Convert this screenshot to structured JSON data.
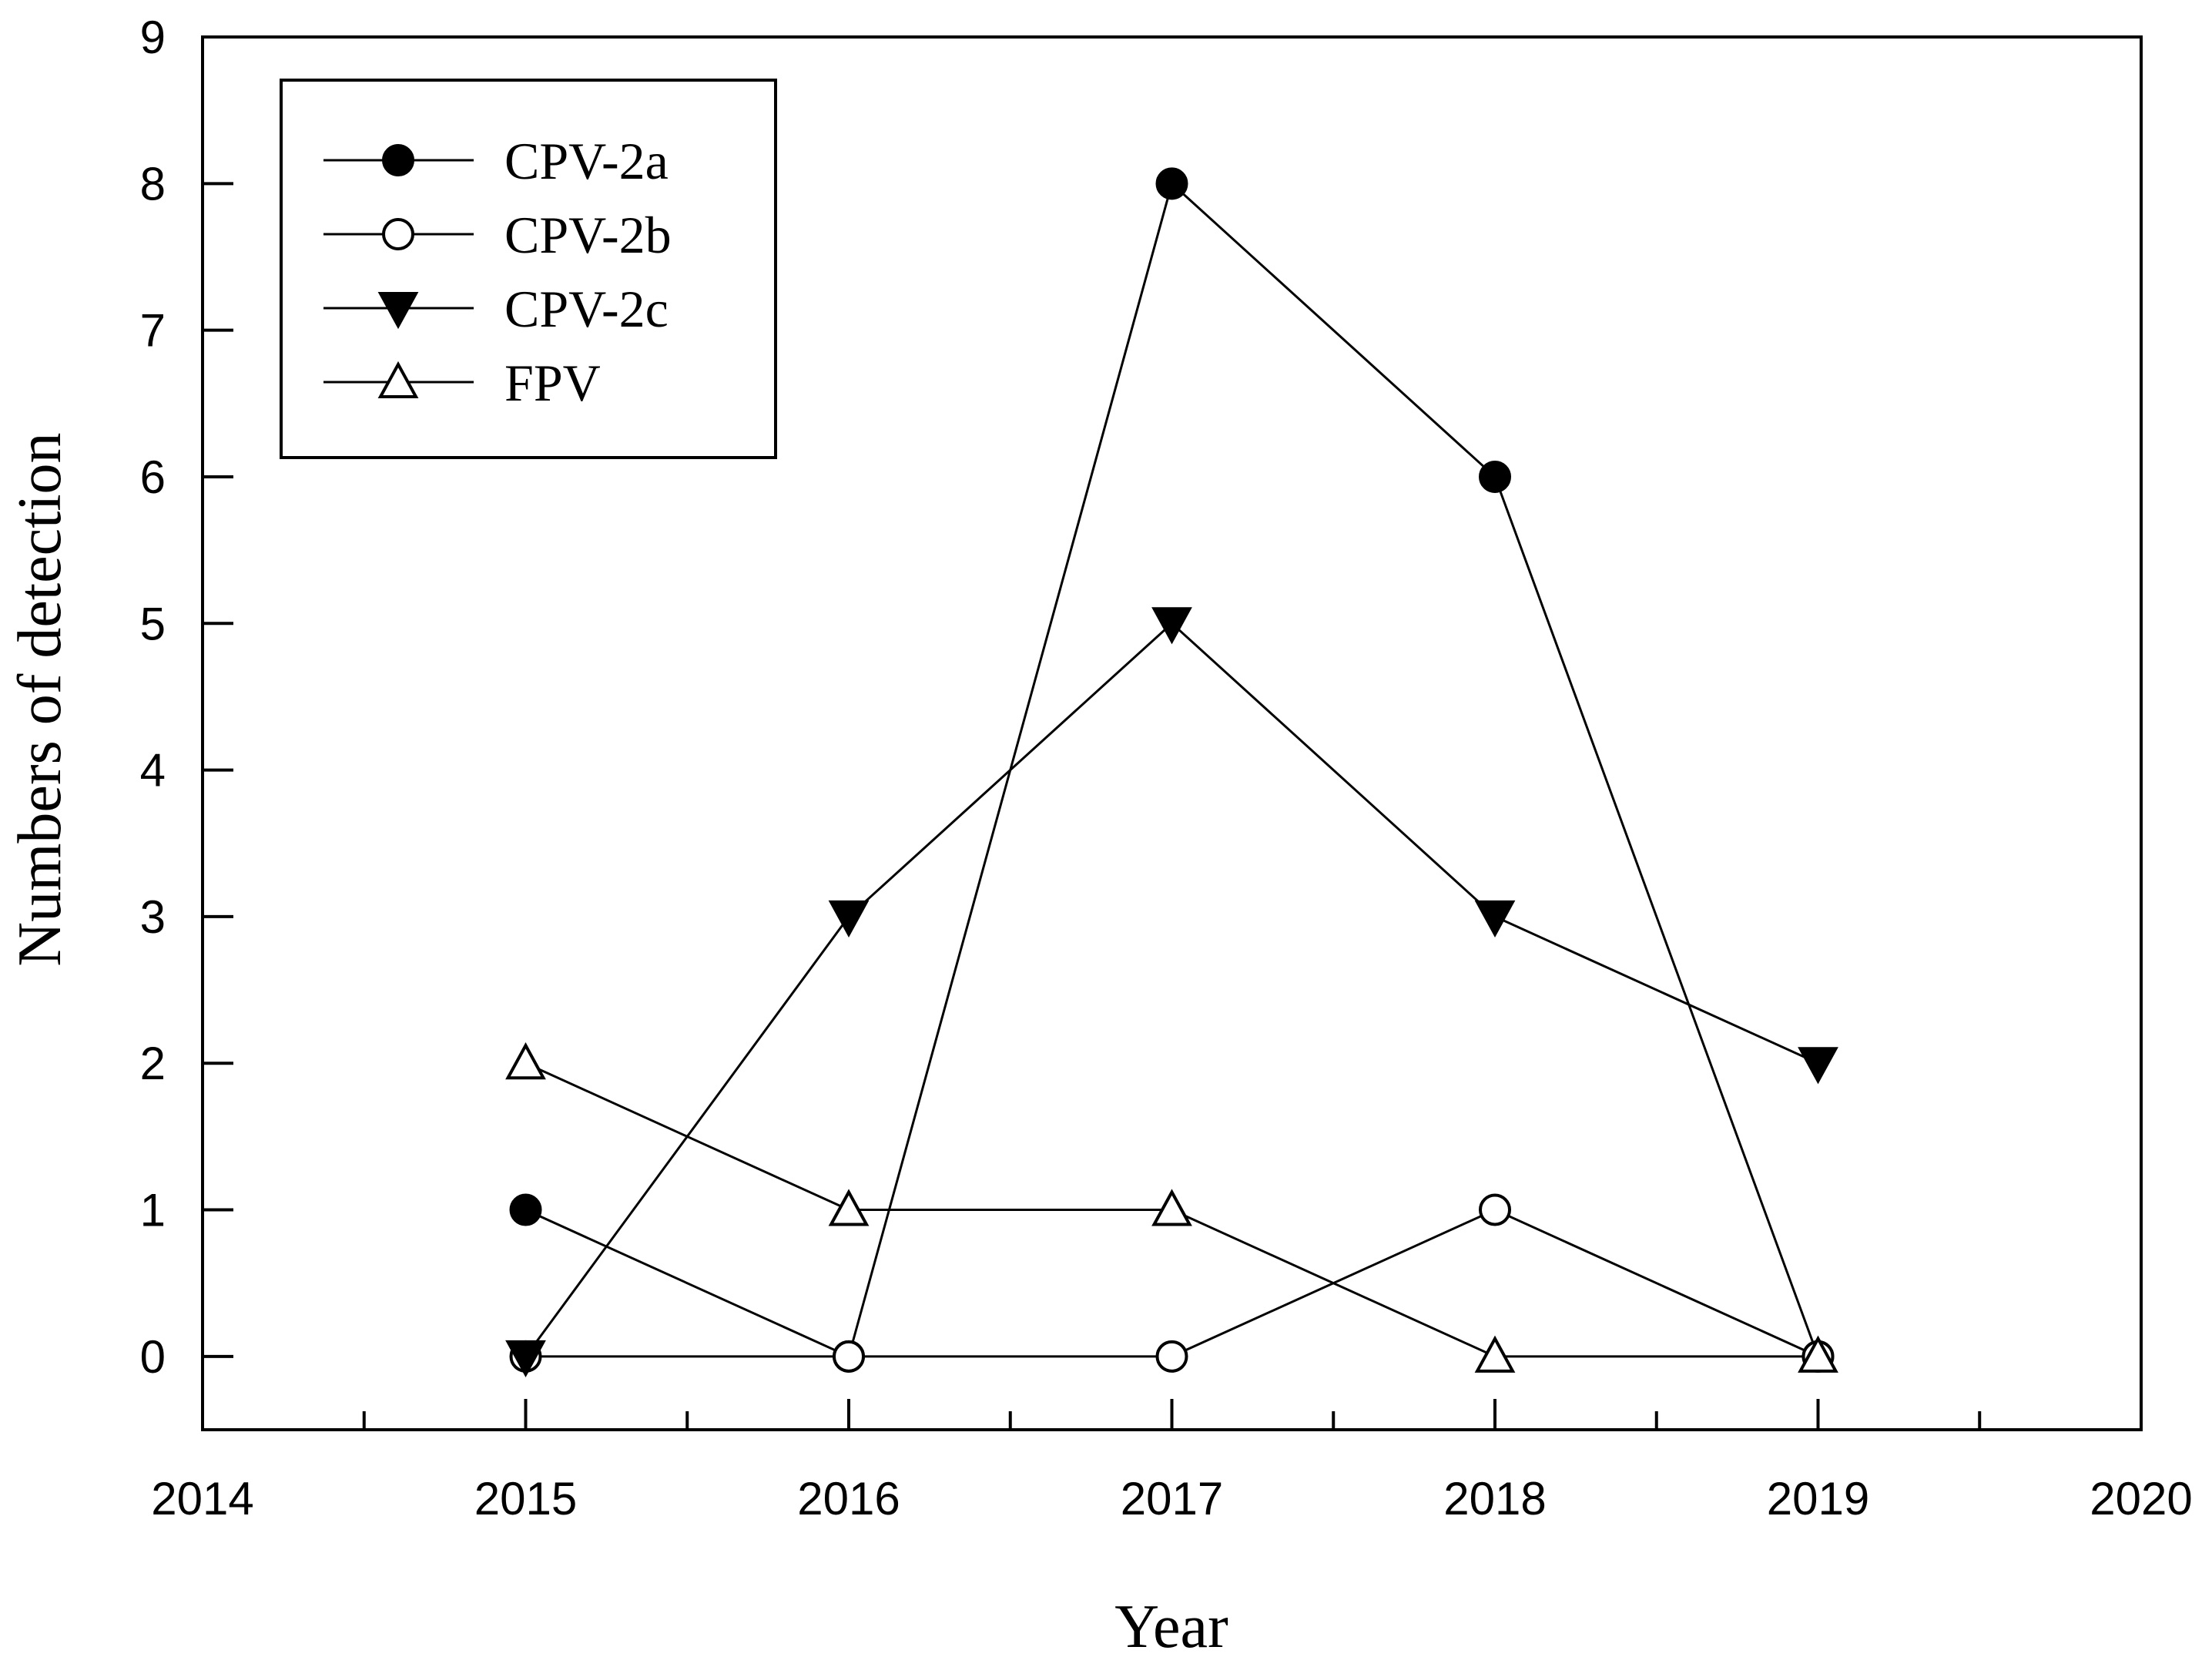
{
  "chart_data": {
    "type": "line",
    "title": "",
    "xlabel": "Year",
    "ylabel": "Numbers of detection",
    "xlim": [
      2014,
      2020
    ],
    "ylim": [
      -0.5,
      9
    ],
    "x_major_ticks": [
      2014,
      2015,
      2016,
      2017,
      2018,
      2019,
      2020
    ],
    "x_minor_step": 0.5,
    "y_ticks": [
      0,
      1,
      2,
      3,
      4,
      5,
      6,
      7,
      8,
      9
    ],
    "grid": false,
    "legend_position": "top-left",
    "x": [
      2015,
      2016,
      2017,
      2018,
      2019
    ],
    "series": [
      {
        "name": "CPV-2a",
        "marker": "filled-circle",
        "values": [
          1,
          0,
          8,
          6,
          0
        ]
      },
      {
        "name": "CPV-2b",
        "marker": "open-circle",
        "values": [
          0,
          0,
          0,
          1,
          0
        ]
      },
      {
        "name": "CPV-2c",
        "marker": "filled-triangle-down",
        "values": [
          0,
          3,
          5,
          3,
          2
        ]
      },
      {
        "name": " FPV",
        "marker": "open-triangle-up",
        "values": [
          2,
          1,
          1,
          0,
          0
        ]
      }
    ],
    "colors": {
      "line": "#000000",
      "marker_fill": "#000000",
      "marker_open": "#ffffff"
    }
  }
}
